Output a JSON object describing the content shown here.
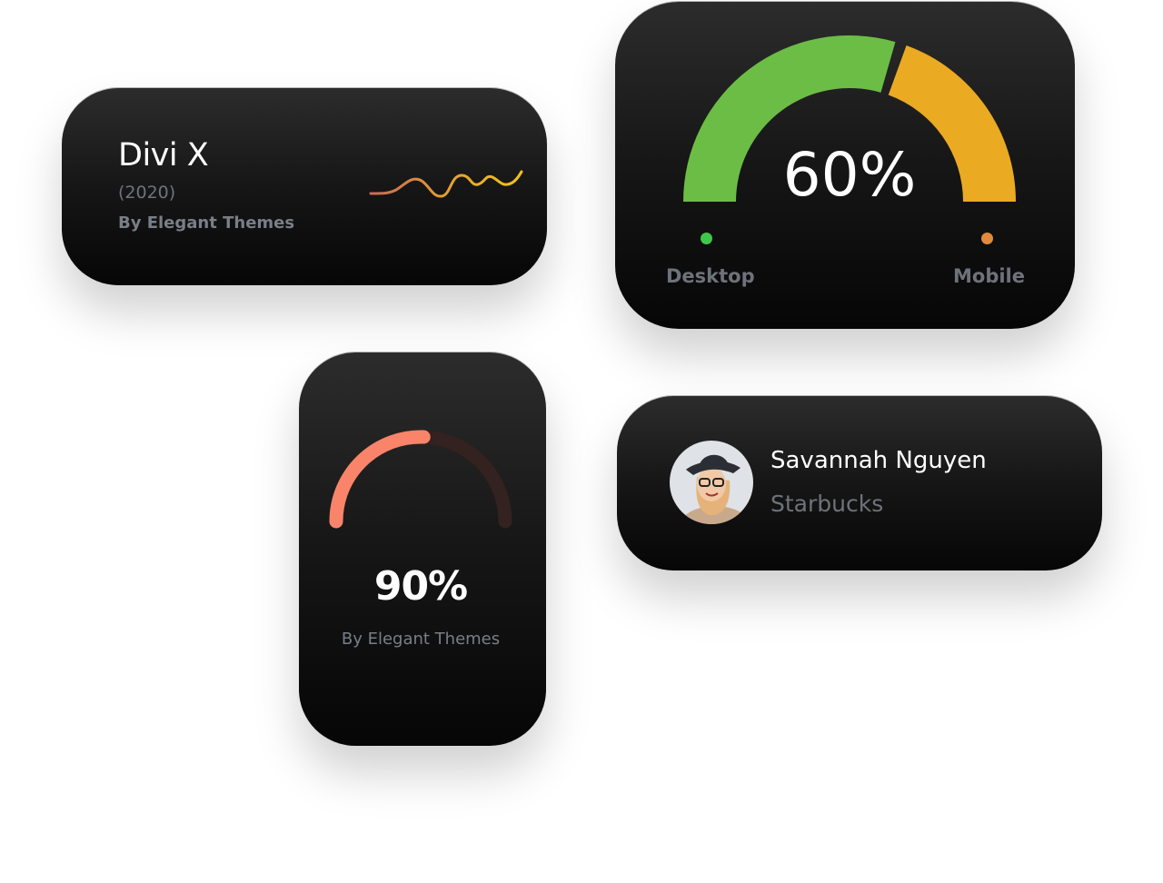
{
  "product_card": {
    "title": "Divi X",
    "year": "(2020)",
    "author": "By Elegant Themes",
    "sparkline_colors": [
      "#c86a5a",
      "#e8a82a",
      "#f1c21b"
    ]
  },
  "device_gauge": {
    "value_label": "60%",
    "desktop_percent": 60,
    "legend": [
      {
        "label": "Desktop",
        "color": "#3ec84a"
      },
      {
        "label": "Mobile",
        "color": "#e38a3c"
      }
    ],
    "colors": {
      "desktop": "#6cbd45",
      "mobile": "#eaaa22"
    }
  },
  "score_card": {
    "value_label": "90%",
    "author": "By Elegant Themes",
    "colors": {
      "fill": "#f9846a",
      "track": "#33221f"
    }
  },
  "profile_card": {
    "name": "Savannah Nguyen",
    "company": "Starbucks",
    "avatar_icon": "person-avatar"
  }
}
